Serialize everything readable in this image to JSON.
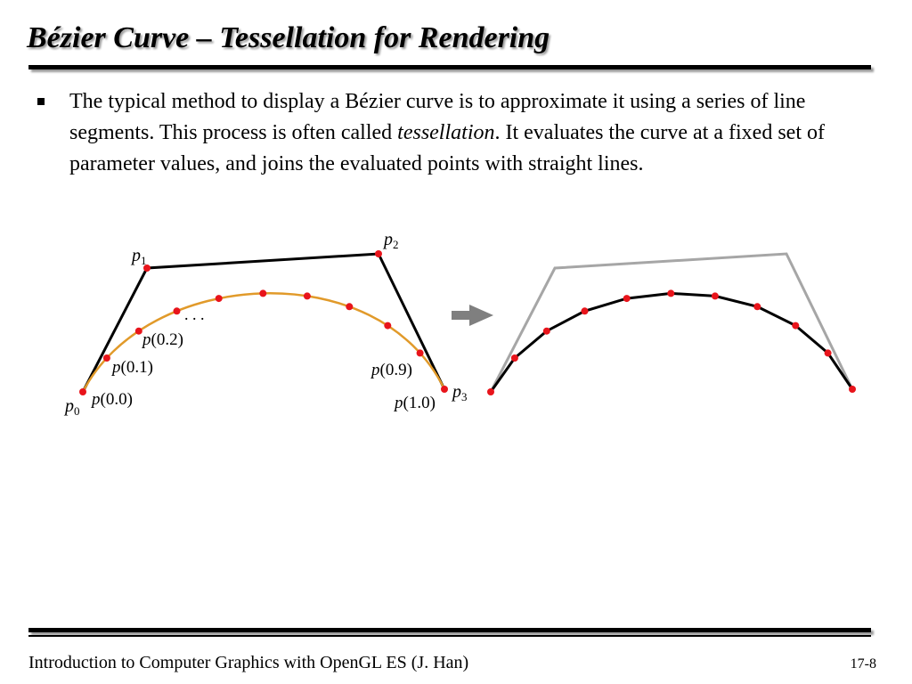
{
  "title": "Bézier Curve – Tessellation for Rendering",
  "bullet": {
    "part1": "The typical method to display a Bézier curve is to approximate it using a series of line segments. This process is often called ",
    "emphasis": "tessellation",
    "part2": ". It evaluates the curve at a fixed set of parameter values, and joins the evaluated points with straight lines."
  },
  "diagram": {
    "control_point_labels": [
      "p",
      "p",
      "p",
      "p"
    ],
    "control_point_subscripts": [
      "0",
      "1",
      "2",
      "3"
    ],
    "sample_labels": [
      {
        "var": "p",
        "arg": "(0.0)"
      },
      {
        "var": "p",
        "arg": "(0.1)"
      },
      {
        "var": "p",
        "arg": "(0.2)"
      },
      {
        "var": "p",
        "arg": "(0.9)"
      },
      {
        "var": "p",
        "arg": "(1.0)"
      }
    ],
    "ellipsis": ". . .",
    "colors": {
      "curve": "#e19a2a",
      "sample_point": "#e8141b",
      "control_polygon": "#000000",
      "control_polygon_faded": "#a6a6a6",
      "arrow": "#7f7f7f"
    },
    "arrow_icon": "right-arrow"
  },
  "footer": {
    "left": "Introduction to Computer Graphics with OpenGL ES (J. Han)",
    "page": "17-8"
  }
}
